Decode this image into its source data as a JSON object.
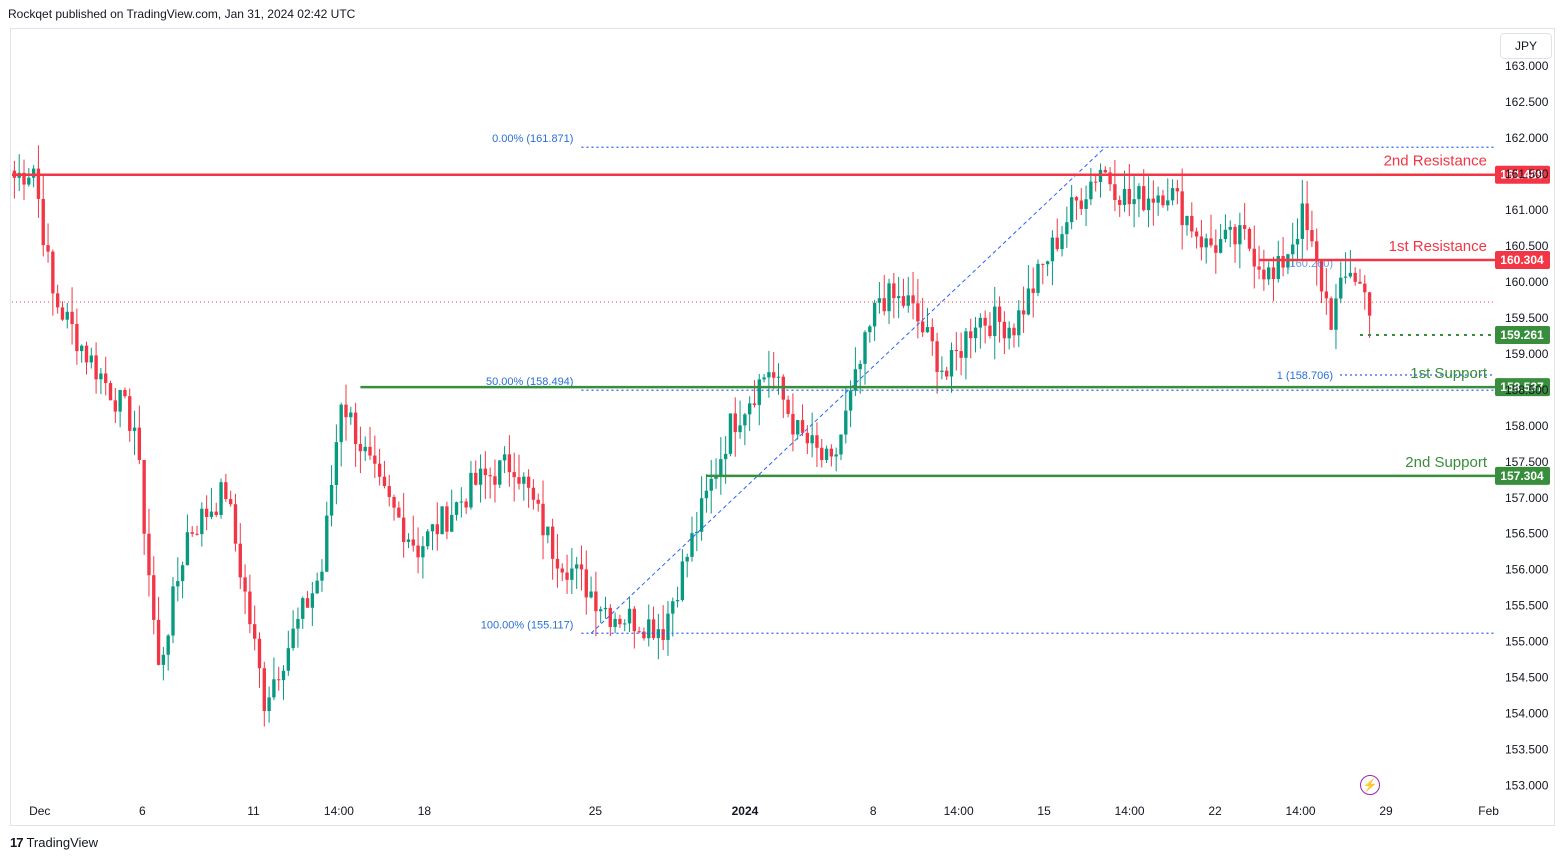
{
  "header": {
    "credit": "Rockqet published on TradingView.com, Jan 31, 2024 02:42 UTC"
  },
  "currency": "JPY",
  "footer": {
    "brand": "TradingView",
    "logo_icon": "tradingview-logo-icon"
  },
  "replay_icon": "lightning-icon",
  "colors": {
    "up": "#089981",
    "down": "#f23645",
    "resistance": "#f23645",
    "support": "#388e3c",
    "fib": "#2962ff",
    "fib_text": "#2a6fd6",
    "price_line": "#f23645"
  },
  "chart_data": {
    "type": "candlestick",
    "symbol_currency": "JPY",
    "ylim": [
      152.8,
      163.5
    ],
    "y_ticks": [
      153.0,
      153.5,
      154.0,
      154.5,
      155.0,
      155.5,
      156.0,
      156.5,
      157.0,
      157.5,
      158.0,
      158.5,
      159.0,
      159.5,
      160.0,
      160.5,
      161.0,
      161.5,
      162.0,
      162.5,
      163.0
    ],
    "y_tick_labels": [
      "153.000",
      "153.500",
      "154.000",
      "154.500",
      "155.000",
      "155.500",
      "156.000",
      "156.500",
      "157.000",
      "157.500",
      "158.000",
      "158.500",
      "159.000",
      "159.500",
      "160.000",
      "160.500",
      "161.000",
      "161.500",
      "162.000",
      "162.500",
      "163.000"
    ],
    "x_labels": [
      {
        "label": "Dec",
        "bar": 6
      },
      {
        "label": "6",
        "bar": 30
      },
      {
        "label": "11",
        "bar": 56
      },
      {
        "label": "14:00",
        "bar": 76
      },
      {
        "label": "18",
        "bar": 96
      },
      {
        "label": "25",
        "bar": 136
      },
      {
        "label": "2024",
        "bar": 171,
        "bold": true
      },
      {
        "label": "8",
        "bar": 201
      },
      {
        "label": "14:00",
        "bar": 221
      },
      {
        "label": "15",
        "bar": 241
      },
      {
        "label": "14:00",
        "bar": 261
      },
      {
        "label": "22",
        "bar": 281
      },
      {
        "label": "14:00",
        "bar": 301
      },
      {
        "label": "29",
        "bar": 321
      },
      {
        "label": "Feb",
        "bar": 345
      }
    ],
    "bar_count": 347,
    "closes": [
      161.45,
      161.2,
      161.5,
      160.9,
      161.6,
      161.1,
      161.3,
      159.9,
      159.7,
      159.5,
      159.6,
      159.3,
      159.2,
      159.4,
      159.0,
      158.9,
      159.5,
      159.1,
      159.2,
      158.8,
      158.9,
      158.9,
      159.0,
      158.5,
      158.3,
      158.0,
      157.5,
      156.2,
      155.2,
      154.0,
      154.6,
      154.8,
      155.8,
      155.6,
      155.0,
      156.0,
      156.5,
      157.3,
      157.4,
      157.5,
      157.0,
      156.7,
      157.2,
      156.9,
      157.1,
      156.8,
      157.0,
      156.9,
      157.2,
      156.6,
      155.7,
      155.0,
      154.3,
      155.2,
      155.8,
      156.2,
      156.6,
      155.9,
      155.3,
      154.9,
      155.3,
      155.6,
      156.3,
      156.6,
      156.0,
      155.6,
      158.4,
      158.0,
      157.9,
      157.5,
      157.2,
      157.6,
      157.1,
      157.4,
      156.6,
      156.4,
      156.5,
      156.3,
      156.3,
      156.6,
      156.4,
      156.5,
      156.9,
      157.0,
      156.8,
      156.9,
      157.0,
      157.2,
      157.4,
      157.6,
      157.8,
      157.6,
      157.2,
      157.0,
      156.7,
      156.5,
      156.8,
      156.4,
      156.3,
      156.2,
      155.8,
      156.0,
      155.5,
      155.3,
      155.8,
      155.4,
      155.1,
      155.5,
      155.8,
      156.1,
      156.3,
      156.6,
      157.1,
      157.7,
      158.2,
      158.4,
      158.6,
      158.2,
      158.5,
      158.8,
      158.4,
      158.1,
      157.9,
      157.6,
      157.8,
      157.4,
      157.2,
      157.6,
      157.3,
      157.5,
      158.0,
      158.2,
      158.5,
      158.7,
      159.2,
      159.8,
      160.0,
      159.7,
      159.5,
      159.9,
      159.6,
      159.4,
      159.0,
      158.7,
      158.6,
      158.9,
      159.3,
      159.5,
      159.3,
      159.6,
      159.4,
      159.8,
      160.1,
      160.4,
      160.7,
      160.9,
      161.1,
      161.0,
      160.8,
      160.9,
      161.3,
      161.6,
      161.2,
      160.9,
      161.3,
      161.5,
      161.2,
      161.1,
      160.8,
      161.0,
      161.3,
      160.9,
      161.2,
      160.6,
      160.8,
      160.5,
      160.3,
      160.6,
      160.4,
      160.2,
      160.3,
      160.6,
      160.8,
      160.5,
      160.2,
      160.1,
      160.0,
      160.4,
      160.7,
      160.9,
      160.6,
      160.4,
      160.1,
      159.8,
      159.5,
      159.6,
      159.3,
      159.5,
      159.9,
      160.2,
      159.9,
      159.7,
      159.75
    ],
    "resample_to_bars": true,
    "series_path_days": [
      {
        "bar": 0,
        "price": 161.45
      },
      {
        "bar": 4,
        "price": 161.6
      },
      {
        "bar": 8,
        "price": 159.8
      },
      {
        "bar": 15,
        "price": 159.0
      },
      {
        "bar": 25,
        "price": 158.0
      },
      {
        "bar": 30,
        "price": 154.6
      },
      {
        "bar": 36,
        "price": 156.5
      },
      {
        "bar": 44,
        "price": 157.1
      },
      {
        "bar": 52,
        "price": 154.2
      },
      {
        "bar": 64,
        "price": 156.0
      },
      {
        "bar": 68,
        "price": 158.4
      },
      {
        "bar": 76,
        "price": 157.1
      },
      {
        "bar": 84,
        "price": 156.3
      },
      {
        "bar": 96,
        "price": 157.2
      },
      {
        "bar": 104,
        "price": 157.5
      },
      {
        "bar": 112,
        "price": 156.3
      },
      {
        "bar": 124,
        "price": 155.4
      },
      {
        "bar": 135,
        "price": 155.2
      },
      {
        "bar": 149,
        "price": 158.0
      },
      {
        "bar": 157,
        "price": 158.8
      },
      {
        "bar": 163,
        "price": 157.9
      },
      {
        "bar": 170,
        "price": 157.4
      },
      {
        "bar": 180,
        "price": 159.8
      },
      {
        "bar": 186,
        "price": 159.7
      },
      {
        "bar": 194,
        "price": 158.7
      },
      {
        "bar": 200,
        "price": 159.5
      },
      {
        "bar": 208,
        "price": 159.4
      },
      {
        "bar": 220,
        "price": 161.0
      },
      {
        "bar": 226,
        "price": 161.6
      },
      {
        "bar": 232,
        "price": 161.1
      },
      {
        "bar": 240,
        "price": 161.3
      },
      {
        "bar": 248,
        "price": 160.5
      },
      {
        "bar": 256,
        "price": 160.6
      },
      {
        "bar": 262,
        "price": 160.0
      },
      {
        "bar": 268,
        "price": 160.9
      },
      {
        "bar": 274,
        "price": 159.5
      },
      {
        "bar": 278,
        "price": 160.2
      },
      {
        "bar": 282,
        "price": 159.7
      }
    ],
    "levels": [
      {
        "name": "2nd Resistance",
        "price": 161.489,
        "label": "161.489",
        "kind": "resistance"
      },
      {
        "name": "1st Resistance",
        "price": 160.304,
        "label": "160.304",
        "kind": "resistance"
      },
      {
        "name": "1st Support",
        "price": 158.537,
        "label": "158.537",
        "kind": "support"
      },
      {
        "name": "2nd Support",
        "price": 157.304,
        "label": "157.304",
        "kind": "support"
      }
    ],
    "dotted_levels": [
      {
        "price": 159.261,
        "label": "159.261",
        "kind": "support"
      }
    ],
    "fib": [
      {
        "label": "0.00% (161.871)",
        "price": 161.871
      },
      {
        "label": "50.00% (158.494)",
        "price": 158.494
      },
      {
        "label": "100.00% (155.117)",
        "price": 155.117
      }
    ],
    "fib_extension": [
      {
        "label": "1 (158.706)",
        "price": 158.706
      },
      {
        "label": "(160.260)",
        "price": 160.26
      }
    ],
    "last_price": 159.72
  }
}
